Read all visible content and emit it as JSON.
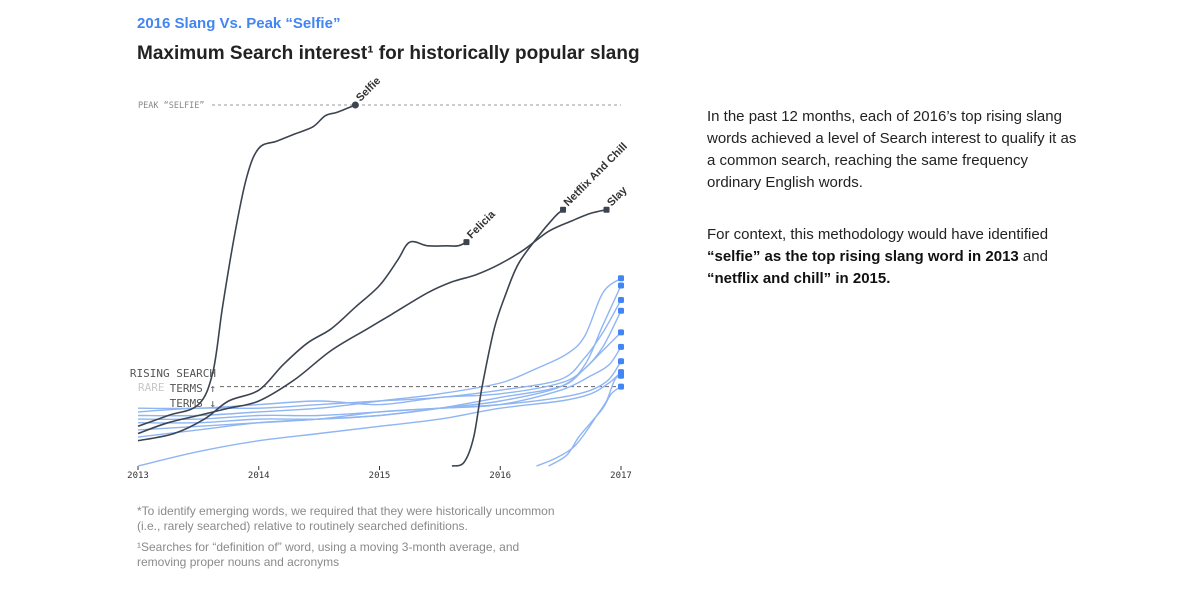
{
  "header": {
    "kicker": "2016 Slang Vs. Peak “Selfie”",
    "title": "Maximum Search interest¹ for historically popular slang"
  },
  "sidebar": {
    "p1": "In the past 12 months, each of 2016’s top rising slang words achieved a level of Search interest to qualify it as a common search, reaching the same frequency ordinary English words.",
    "p2_lead": "For context, this methodology would have identified ",
    "p2_bold1": "“selfie” as the top rising slang word in 2013",
    "p2_mid": " and ",
    "p2_bold2": "“netflix and chill” in 2015."
  },
  "footnotes": {
    "f1": "*To identify emerging words, we required that they were historically uncommon (i.e., rarely searched) relative to routinely searched definitions.",
    "f2": "¹Searches for “definition of” word, using a moving 3-month average, and removing proper nouns and acronyms"
  },
  "chart_data": {
    "type": "line",
    "xlim": [
      2013,
      2017
    ],
    "ylim": [
      0,
      100
    ],
    "xticks": [
      "2013",
      "2014",
      "2015",
      "2016",
      "2017"
    ],
    "reference_lines": [
      {
        "label": "PEAK “SELFIE”",
        "value": 100
      },
      {
        "label_top": "RISING SEARCH",
        "label_mid": "TERMS ↑",
        "label_faded": "RARE",
        "label_bottom": "TERMS ↓",
        "value": 22
      }
    ],
    "highlight_color": "#3c4450",
    "rising_color": "#8fb5f2",
    "endpoint_color": "#4285f4",
    "series": [
      {
        "name": "Selfie",
        "style": "highlight",
        "points": [
          [
            2013,
            11
          ],
          [
            2013.25,
            14
          ],
          [
            2013.5,
            17
          ],
          [
            2013.62,
            26
          ],
          [
            2013.7,
            44
          ],
          [
            2013.8,
            64
          ],
          [
            2013.9,
            80
          ],
          [
            2014,
            88
          ],
          [
            2014.15,
            90
          ],
          [
            2014.3,
            92
          ],
          [
            2014.45,
            94
          ],
          [
            2014.55,
            97
          ],
          [
            2014.65,
            98
          ],
          [
            2014.8,
            100
          ]
        ]
      },
      {
        "name": "Felicia",
        "style": "highlight",
        "points": [
          [
            2013,
            7
          ],
          [
            2013.3,
            9
          ],
          [
            2013.55,
            13
          ],
          [
            2013.75,
            18
          ],
          [
            2014,
            21
          ],
          [
            2014.2,
            28
          ],
          [
            2014.4,
            34
          ],
          [
            2014.6,
            38
          ],
          [
            2014.8,
            44
          ],
          [
            2015,
            50
          ],
          [
            2015.15,
            57
          ],
          [
            2015.25,
            62
          ],
          [
            2015.4,
            61
          ],
          [
            2015.55,
            61
          ],
          [
            2015.65,
            61
          ],
          [
            2015.72,
            62
          ]
        ]
      },
      {
        "name": "Netflix And Chill",
        "style": "highlight",
        "points": [
          [
            2015.6,
            0
          ],
          [
            2015.7,
            1
          ],
          [
            2015.78,
            8
          ],
          [
            2015.85,
            22
          ],
          [
            2015.95,
            38
          ],
          [
            2016.05,
            48
          ],
          [
            2016.15,
            56
          ],
          [
            2016.3,
            63
          ],
          [
            2016.45,
            69
          ],
          [
            2016.52,
            71
          ]
        ]
      },
      {
        "name": "Slay",
        "style": "highlight",
        "points": [
          [
            2013,
            9
          ],
          [
            2013.25,
            12
          ],
          [
            2013.5,
            14
          ],
          [
            2013.75,
            16
          ],
          [
            2014,
            18
          ],
          [
            2014.3,
            24
          ],
          [
            2014.6,
            32
          ],
          [
            2014.9,
            38
          ],
          [
            2015.1,
            42
          ],
          [
            2015.4,
            48
          ],
          [
            2015.6,
            51
          ],
          [
            2015.8,
            53
          ],
          [
            2016,
            56
          ],
          [
            2016.2,
            60
          ],
          [
            2016.4,
            65
          ],
          [
            2016.6,
            68
          ],
          [
            2016.75,
            70
          ],
          [
            2016.88,
            71
          ]
        ]
      },
      {
        "name": "",
        "style": "rising",
        "points": [
          [
            2013,
            14
          ],
          [
            2013.5,
            14
          ],
          [
            2014,
            15
          ],
          [
            2014.5,
            16
          ],
          [
            2015,
            18
          ],
          [
            2015.5,
            20
          ],
          [
            2016,
            23
          ],
          [
            2016.3,
            27
          ],
          [
            2016.55,
            31
          ],
          [
            2016.7,
            36
          ],
          [
            2016.85,
            48
          ],
          [
            2017,
            52
          ]
        ]
      },
      {
        "name": "",
        "style": "rising",
        "points": [
          [
            2013,
            12
          ],
          [
            2013.5,
            12
          ],
          [
            2014,
            13
          ],
          [
            2014.5,
            13
          ],
          [
            2015,
            14
          ],
          [
            2015.5,
            16
          ],
          [
            2016,
            18
          ],
          [
            2016.5,
            22
          ],
          [
            2016.7,
            28
          ],
          [
            2016.85,
            39
          ],
          [
            2017,
            50
          ]
        ]
      },
      {
        "name": "",
        "style": "rising",
        "points": [
          [
            2013,
            15
          ],
          [
            2013.5,
            16
          ],
          [
            2014,
            16
          ],
          [
            2014.5,
            17
          ],
          [
            2015,
            18
          ],
          [
            2015.5,
            19
          ],
          [
            2016,
            21
          ],
          [
            2016.5,
            24
          ],
          [
            2016.7,
            30
          ],
          [
            2016.85,
            37
          ],
          [
            2017,
            46
          ]
        ]
      },
      {
        "name": "",
        "style": "rising",
        "points": [
          [
            2013,
            16
          ],
          [
            2013.5,
            16
          ],
          [
            2014,
            17
          ],
          [
            2014.5,
            18
          ],
          [
            2015,
            17
          ],
          [
            2015.5,
            19
          ],
          [
            2016,
            20
          ],
          [
            2016.5,
            23
          ],
          [
            2016.7,
            27
          ],
          [
            2016.85,
            33
          ],
          [
            2017,
            43
          ]
        ]
      },
      {
        "name": "",
        "style": "rising",
        "points": [
          [
            2013,
            8
          ],
          [
            2013.5,
            10
          ],
          [
            2014,
            12
          ],
          [
            2014.5,
            13
          ],
          [
            2015,
            14
          ],
          [
            2015.5,
            16
          ],
          [
            2016,
            19
          ],
          [
            2016.5,
            22
          ],
          [
            2016.7,
            27
          ],
          [
            2016.85,
            32
          ],
          [
            2017,
            37
          ]
        ]
      },
      {
        "name": "",
        "style": "rising",
        "points": [
          [
            2013,
            13
          ],
          [
            2013.5,
            13
          ],
          [
            2014,
            14
          ],
          [
            2014.5,
            14
          ],
          [
            2015,
            15
          ],
          [
            2015.5,
            16
          ],
          [
            2016,
            17
          ],
          [
            2016.5,
            21
          ],
          [
            2016.75,
            25
          ],
          [
            2016.9,
            28
          ],
          [
            2017,
            33
          ]
        ]
      },
      {
        "name": "",
        "style": "rising",
        "points": [
          [
            2013,
            10
          ],
          [
            2013.5,
            11
          ],
          [
            2014,
            12
          ],
          [
            2014.5,
            13
          ],
          [
            2015,
            15
          ],
          [
            2015.5,
            16
          ],
          [
            2016,
            17
          ],
          [
            2016.5,
            19
          ],
          [
            2016.75,
            21
          ],
          [
            2016.9,
            24
          ],
          [
            2017,
            29
          ]
        ]
      },
      {
        "name": "",
        "style": "rising",
        "points": [
          [
            2013,
            0
          ],
          [
            2013.5,
            4
          ],
          [
            2014,
            7
          ],
          [
            2014.5,
            9
          ],
          [
            2015,
            11
          ],
          [
            2015.5,
            13
          ],
          [
            2016,
            16
          ],
          [
            2016.5,
            18
          ],
          [
            2016.75,
            20
          ],
          [
            2016.9,
            23
          ],
          [
            2017,
            26
          ]
        ]
      },
      {
        "name": "",
        "style": "rising",
        "points": [
          [
            2016.3,
            0
          ],
          [
            2016.45,
            2
          ],
          [
            2016.6,
            5
          ],
          [
            2016.7,
            9
          ],
          [
            2016.8,
            14
          ],
          [
            2016.88,
            18
          ],
          [
            2016.95,
            24
          ],
          [
            2017,
            25
          ]
        ]
      },
      {
        "name": "",
        "style": "rising",
        "points": [
          [
            2016.4,
            0
          ],
          [
            2016.55,
            3
          ],
          [
            2016.65,
            8
          ],
          [
            2016.75,
            12
          ],
          [
            2016.85,
            16
          ],
          [
            2016.92,
            20
          ],
          [
            2017,
            22
          ]
        ]
      }
    ]
  }
}
